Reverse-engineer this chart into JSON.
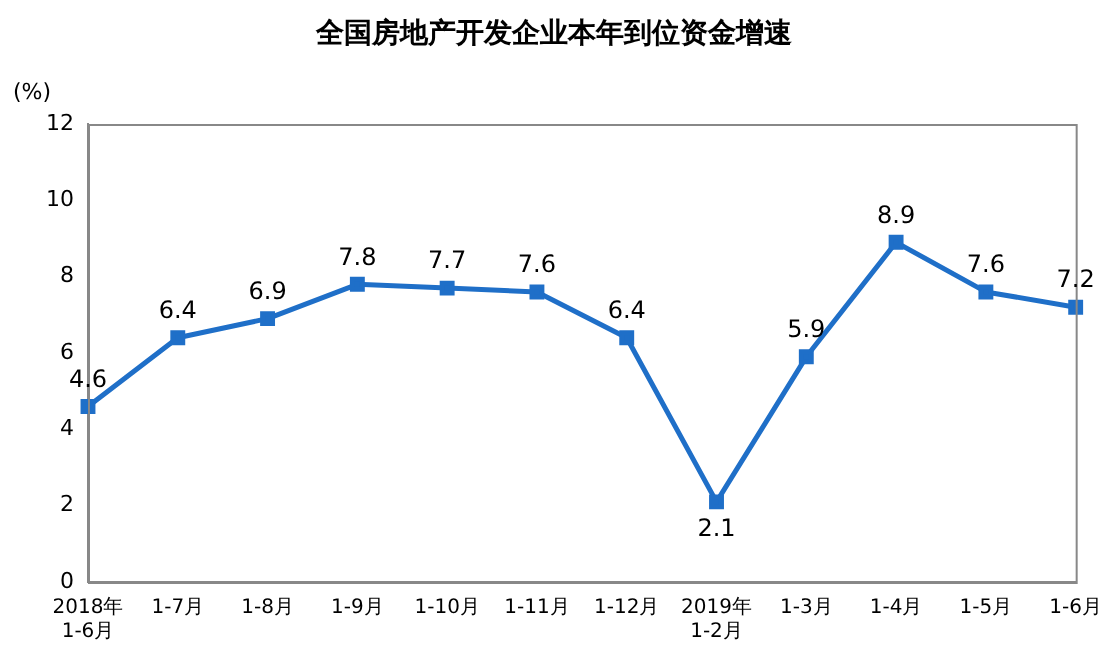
{
  "chart_data": {
    "type": "line",
    "title": "全国房地产开发企业本年到位资金增速",
    "ylabel": "(%)",
    "categories": [
      "2018年\n1-6月",
      "1-7月",
      "1-8月",
      "1-9月",
      "1-10月",
      "1-11月",
      "1-12月",
      "2019年\n1-2月",
      "1-3月",
      "1-4月",
      "1-5月",
      "1-6月"
    ],
    "series": [
      {
        "color": "#1f6fc8",
        "values": [
          4.6,
          6.4,
          6.9,
          7.8,
          7.7,
          7.6,
          6.4,
          2.1,
          5.9,
          8.9,
          7.6,
          7.2
        ]
      }
    ],
    "ylim": [
      0,
      12
    ],
    "yticks": [
      0,
      2,
      4,
      6,
      8,
      10,
      12
    ],
    "grid": false,
    "legend": false,
    "marker": "square",
    "line_style": "solid",
    "data_labels": true
  }
}
